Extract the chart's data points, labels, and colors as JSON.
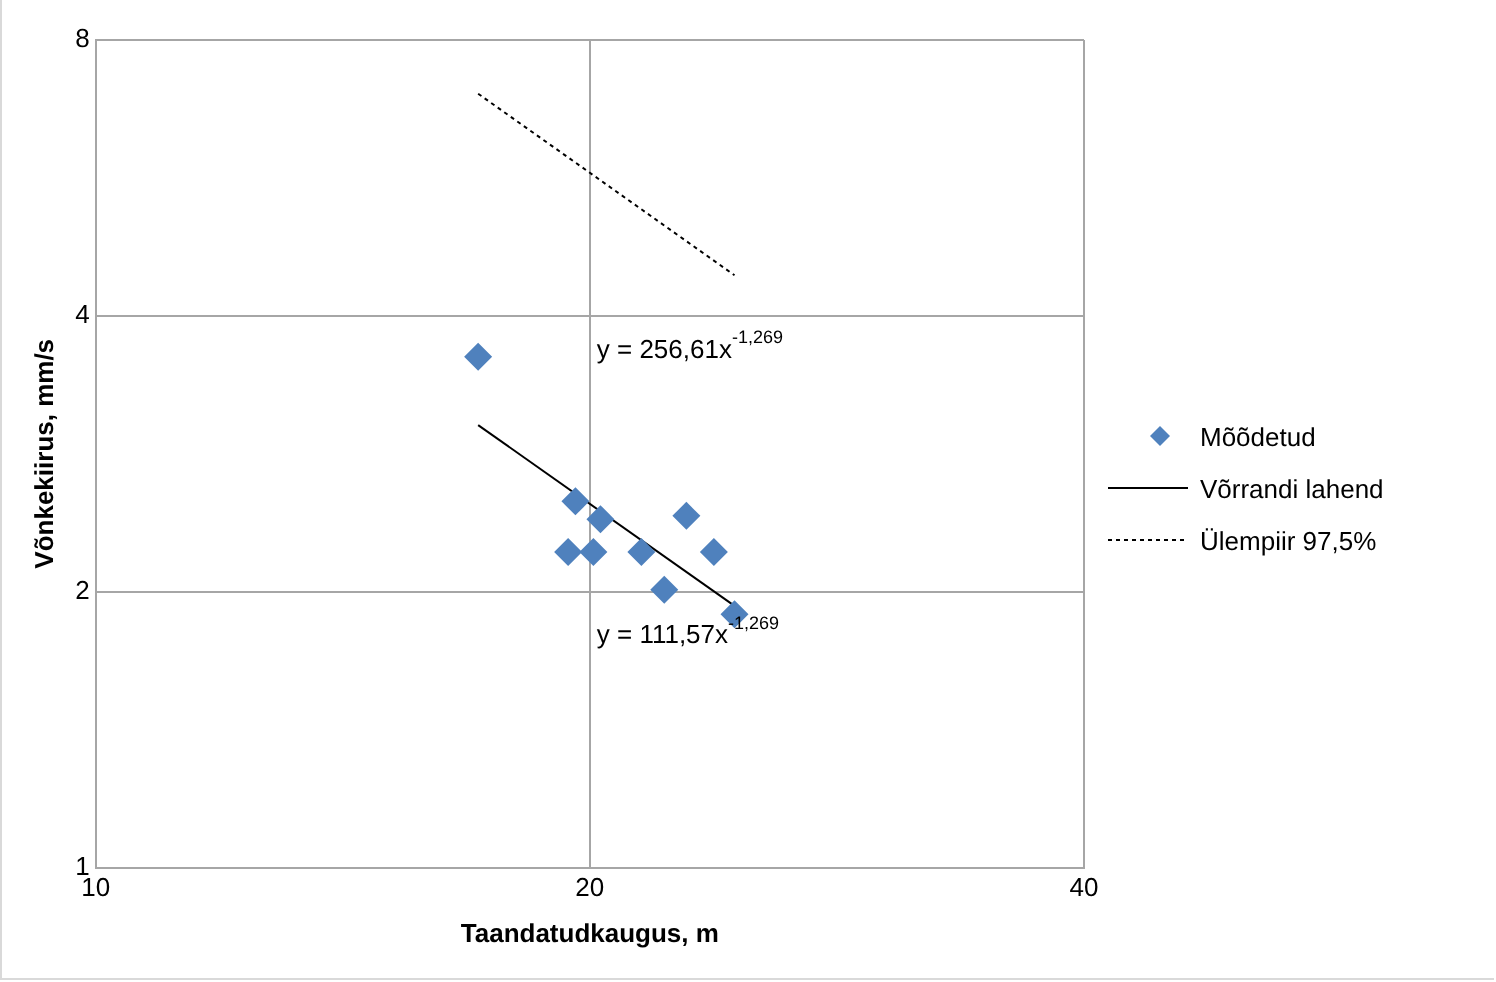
{
  "chart_data": {
    "type": "scatter",
    "xlabel": "Taandatudkaugus, m",
    "ylabel": "Võnkekiirus, mm/s",
    "log": "xy",
    "xlim": [
      10,
      40
    ],
    "xticks": [
      10,
      20,
      40
    ],
    "ylim": [
      1,
      8
    ],
    "yticks": [
      1,
      2,
      4,
      8
    ],
    "grid": true,
    "legend": "right",
    "marker": "diamond",
    "series": [
      {
        "name": "Mõõdetud",
        "color": "#4f81bd",
        "x": [
          17.1,
          19.6,
          20.3,
          19.4,
          20.1,
          21.5,
          22.9,
          23.8,
          22.2,
          24.5
        ],
        "values": [
          3.61,
          2.51,
          2.4,
          2.21,
          2.21,
          2.21,
          2.42,
          2.21,
          2.01,
          1.89
        ]
      },
      {
        "name": "Võrrandi lahend",
        "type": "line",
        "color": "#000000",
        "marker": "none",
        "line_style": "solid",
        "x": [
          17.1,
          24.5
        ],
        "values": [
          3.04,
          1.93
        ]
      },
      {
        "name": "Ülempiir 97,5%",
        "type": "line",
        "color": "#000000",
        "marker": "none",
        "line_style": "dotted",
        "x": [
          17.1,
          24.5
        ],
        "values": [
          6.99,
          4.43
        ]
      }
    ],
    "annotations": [
      "y = 256,61x$^{-1,269}$",
      "y = 111,57x$^{-1,269}$"
    ]
  }
}
